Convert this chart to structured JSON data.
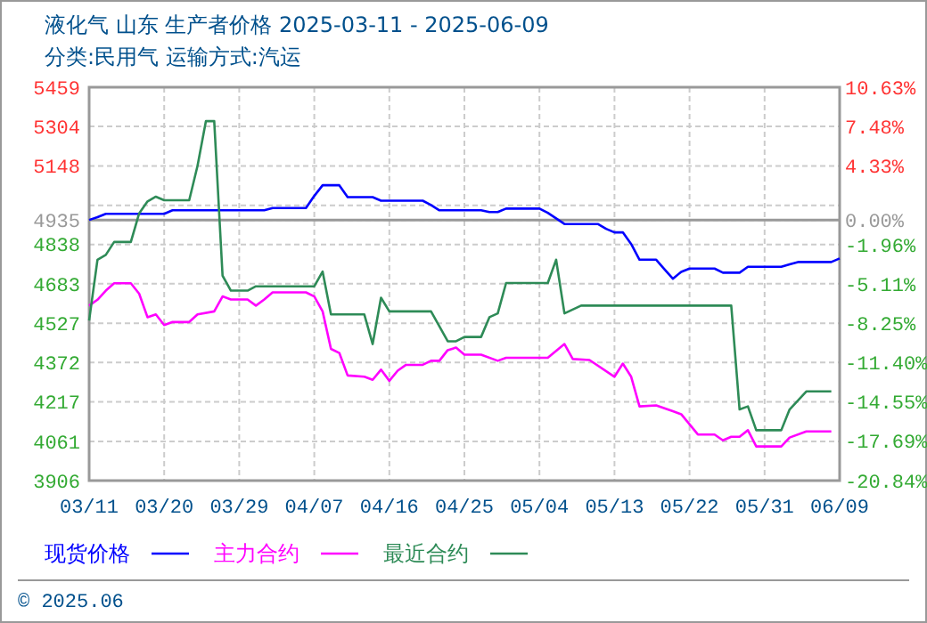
{
  "chart_data": {
    "type": "line",
    "title": "液化气 山东 生产者价格 2025-03-11 - 2025-06-09",
    "subtitle": "分类:民用气 运输方式:汽运",
    "xlim": [
      "2025-03-11",
      "2025-06-09"
    ],
    "xticks": [
      {
        "value": "2025-03-11",
        "label": "03/11"
      },
      {
        "value": "2025-03-20",
        "label": "03/20"
      },
      {
        "value": "2025-03-29",
        "label": "03/29"
      },
      {
        "value": "2025-04-07",
        "label": "04/07"
      },
      {
        "value": "2025-04-16",
        "label": "04/16"
      },
      {
        "value": "2025-04-25",
        "label": "04/25"
      },
      {
        "value": "2025-05-04",
        "label": "05/04"
      },
      {
        "value": "2025-05-13",
        "label": "05/13"
      },
      {
        "value": "2025-05-22",
        "label": "05/22"
      },
      {
        "value": "2025-05-31",
        "label": "05/31"
      },
      {
        "value": "2025-06-09",
        "label": "06/09"
      }
    ],
    "ylim": [
      3906,
      5459
    ],
    "yticks": [
      3906,
      4061,
      4217,
      4372,
      4527,
      4683,
      4838,
      4935,
      {
        "value": 4993,
        "label": null
      },
      5148,
      5304,
      5459
    ],
    "y2lim": [
      -20.84,
      10.63
    ],
    "y2ticks": [
      {
        "value": -20.84,
        "label": "-20.84%"
      },
      {
        "value": -17.69,
        "label": "-17.69%"
      },
      {
        "value": -14.55,
        "label": "-14.55%"
      },
      {
        "value": -11.4,
        "label": "-11.40%"
      },
      {
        "value": -8.25,
        "label": "-8.25%"
      },
      {
        "value": -5.11,
        "label": "-5.11%"
      },
      {
        "value": -1.96,
        "label": "-1.96%"
      },
      {
        "value": 0,
        "label": "0.00%"
      },
      {
        "value": 4.33,
        "label": "4.33%"
      },
      {
        "value": 7.48,
        "label": "7.48%"
      },
      {
        "value": 10.63,
        "label": "10.63%"
      }
    ],
    "ref_lines": [
      {
        "axis": "y",
        "value": 4935,
        "color": "#999999"
      }
    ],
    "grid": true,
    "legend": "bottom",
    "line_style": "solid",
    "marker": "none",
    "annotations": [
      "© 2025.06"
    ],
    "series": [
      {
        "name": "现货价格",
        "color": "#0000ff",
        "x": [
          "2025-03-11",
          "2025-03-12",
          "2025-03-13",
          "2025-03-20",
          "2025-03-21",
          "2025-04-01",
          "2025-04-02",
          "2025-04-06",
          "2025-04-07",
          "2025-04-08",
          "2025-04-10",
          "2025-04-11",
          "2025-04-14",
          "2025-04-15",
          "2025-04-20",
          "2025-04-21",
          "2025-04-22",
          "2025-04-27",
          "2025-04-28",
          "2025-04-29",
          "2025-04-30",
          "2025-05-04",
          "2025-05-05",
          "2025-05-07",
          "2025-05-11",
          "2025-05-12",
          "2025-05-13",
          "2025-05-14",
          "2025-05-15",
          "2025-05-16",
          "2025-05-18",
          "2025-05-19",
          "2025-05-20",
          "2025-05-21",
          "2025-05-22",
          "2025-05-25",
          "2025-05-26",
          "2025-05-28",
          "2025-05-29",
          "2025-06-02",
          "2025-06-03",
          "2025-06-04",
          "2025-06-08",
          "2025-06-09"
        ],
        "values": [
          4935,
          4946,
          4959,
          4959,
          4973,
          4973,
          4982,
          4982,
          5030,
          5072,
          5072,
          5025,
          5025,
          5011,
          5011,
          4994,
          4973,
          4973,
          4966,
          4966,
          4980,
          4980,
          4963,
          4919,
          4919,
          4900,
          4886,
          4886,
          4840,
          4778,
          4778,
          4740,
          4703,
          4730,
          4743,
          4743,
          4727,
          4727,
          4750,
          4750,
          4760,
          4769,
          4769,
          4783
        ]
      },
      {
        "name": "主力合约",
        "color": "#ff00ff",
        "x": [
          "2025-03-11",
          "2025-03-12",
          "2025-03-13",
          "2025-03-14",
          "2025-03-16",
          "2025-03-17",
          "2025-03-18",
          "2025-03-19",
          "2025-03-20",
          "2025-03-21",
          "2025-03-23",
          "2025-03-24",
          "2025-03-26",
          "2025-03-27",
          "2025-03-28",
          "2025-03-30",
          "2025-03-31",
          "2025-04-01",
          "2025-04-02",
          "2025-04-06",
          "2025-04-07",
          "2025-04-08",
          "2025-04-09",
          "2025-04-10",
          "2025-04-11",
          "2025-04-13",
          "2025-04-14",
          "2025-04-15",
          "2025-04-16",
          "2025-04-17",
          "2025-04-18",
          "2025-04-20",
          "2025-04-21",
          "2025-04-22",
          "2025-04-23",
          "2025-04-24",
          "2025-04-25",
          "2025-04-27",
          "2025-04-29",
          "2025-04-30",
          "2025-05-05",
          "2025-05-07",
          "2025-05-08",
          "2025-05-10",
          "2025-05-13",
          "2025-05-14",
          "2025-05-15",
          "2025-05-16",
          "2025-05-18",
          "2025-05-20",
          "2025-05-21",
          "2025-05-23",
          "2025-05-25",
          "2025-05-26",
          "2025-05-27",
          "2025-05-28",
          "2025-05-29",
          "2025-05-30",
          "2025-06-02",
          "2025-06-03",
          "2025-06-05",
          "2025-06-08"
        ],
        "values": [
          4597,
          4620,
          4656,
          4685,
          4685,
          4644,
          4551,
          4562,
          4520,
          4532,
          4532,
          4562,
          4574,
          4633,
          4621,
          4621,
          4597,
          4621,
          4649,
          4649,
          4633,
          4574,
          4426,
          4410,
          4321,
          4316,
          4304,
          4344,
          4300,
          4340,
          4363,
          4363,
          4379,
          4379,
          4421,
          4431,
          4403,
          4403,
          4379,
          4391,
          4391,
          4445,
          4386,
          4382,
          4316,
          4368,
          4316,
          4199,
          4203,
          4180,
          4168,
          4088,
          4088,
          4065,
          4079,
          4079,
          4105,
          4041,
          4041,
          4076,
          4100,
          4100
        ]
      },
      {
        "name": "最近合约",
        "color": "#2e8b57",
        "x": [
          "2025-03-11",
          "2025-03-12",
          "2025-03-13",
          "2025-03-14",
          "2025-03-16",
          "2025-03-17",
          "2025-03-18",
          "2025-03-19",
          "2025-03-20",
          "2025-03-23",
          "2025-03-24",
          "2025-03-25",
          "2025-03-26",
          "2025-03-27",
          "2025-03-28",
          "2025-03-30",
          "2025-03-31",
          "2025-04-07",
          "2025-04-08",
          "2025-04-09",
          "2025-04-13",
          "2025-04-14",
          "2025-04-15",
          "2025-04-16",
          "2025-04-21",
          "2025-04-23",
          "2025-04-24",
          "2025-04-25",
          "2025-04-27",
          "2025-04-28",
          "2025-04-29",
          "2025-04-30",
          "2025-05-05",
          "2025-05-06",
          "2025-05-07",
          "2025-05-09",
          "2025-05-27",
          "2025-05-28",
          "2025-05-29",
          "2025-05-30",
          "2025-06-02",
          "2025-06-03",
          "2025-06-05",
          "2025-06-08"
        ],
        "values": [
          4538,
          4778,
          4797,
          4848,
          4848,
          4961,
          5008,
          5027,
          5013,
          5013,
          5149,
          5325,
          5325,
          4715,
          4656,
          4656,
          4673,
          4673,
          4731,
          4562,
          4562,
          4445,
          4628,
          4574,
          4574,
          4456,
          4456,
          4473,
          4473,
          4551,
          4566,
          4686,
          4686,
          4778,
          4566,
          4597,
          4597,
          4187,
          4199,
          4105,
          4105,
          4187,
          4258,
          4258
        ]
      }
    ]
  }
}
